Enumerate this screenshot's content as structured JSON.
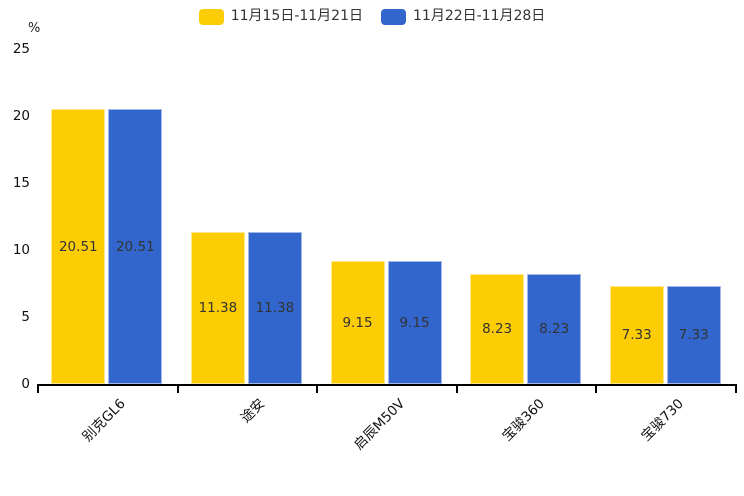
{
  "chart_data": {
    "type": "bar",
    "title": "",
    "unit_label": "%",
    "categories": [
      "别克GL6",
      "途安",
      "启辰M50V",
      "宝骏360",
      "宝骏730"
    ],
    "series": [
      {
        "name": "11月15日-11月21日",
        "color": "#fccd05",
        "values": [
          20.51,
          11.38,
          9.15,
          8.23,
          7.33
        ]
      },
      {
        "name": "11月22日-11月28日",
        "color": "#3366cc",
        "values": [
          20.51,
          11.38,
          9.15,
          8.23,
          7.33
        ]
      }
    ],
    "value_labels": [
      "20.51",
      "11.38",
      "9.15",
      "8.23",
      "7.33"
    ],
    "ylim": [
      0,
      25
    ],
    "yticks": [
      0,
      5,
      10,
      15,
      20,
      25
    ],
    "grid": false,
    "legend_position": "top-center",
    "value_label_position": "inside-center",
    "category_label_rotation_deg": 45,
    "colors": {
      "axis": "#000000",
      "value_label": "#333333",
      "background": "#ffffff"
    }
  }
}
